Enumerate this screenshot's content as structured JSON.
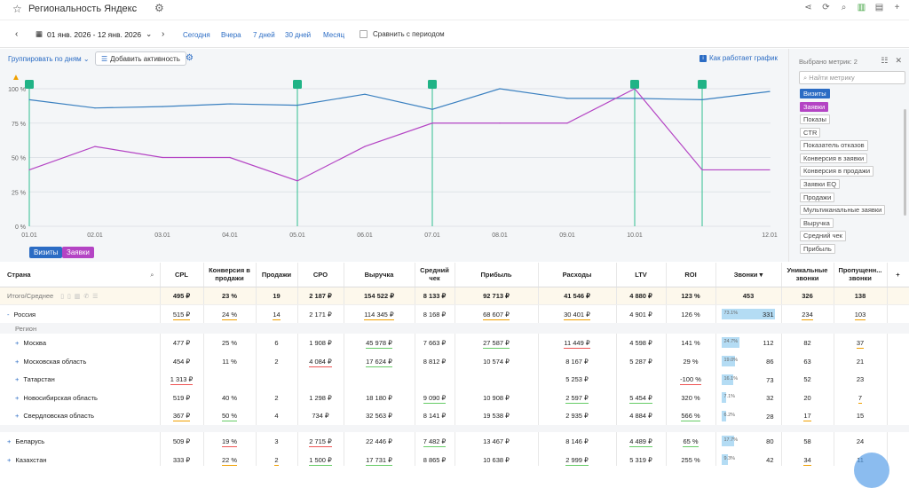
{
  "header": {
    "title": "Региональность Яндекс",
    "icons": [
      "share-icon",
      "refresh-icon",
      "search-icon",
      "chart-icon",
      "excel-icon",
      "plus-icon"
    ]
  },
  "toolbar": {
    "date_range": "01 янв. 2026 - 12 янв. 2026",
    "periods": [
      "Сегодня",
      "Вчера",
      "7 дней",
      "30 дней",
      "Месяц"
    ],
    "compare_label": "Сравнить с периодом"
  },
  "chart_controls": {
    "group_by": "Группировать по дням",
    "add_activity": "Добавить активность",
    "how_works": "Как работает график"
  },
  "chart_data": {
    "type": "line",
    "x": [
      "01.01",
      "02.01",
      "03.01",
      "04.01",
      "05.01",
      "06.01",
      "07.01",
      "08.01",
      "09.01",
      "10.01",
      "11.01",
      "12.01"
    ],
    "x_ticks": [
      "01.01",
      "02.01",
      "03.01",
      "04.01",
      "05.01",
      "06.01",
      "07.01",
      "08.01",
      "09.01",
      "10.01",
      "12.01"
    ],
    "y_ticks": [
      "0 %",
      "25 %",
      "50 %",
      "75 %",
      "100 %"
    ],
    "ylim": [
      0,
      100
    ],
    "grid": true,
    "series": [
      {
        "name": "Визиты",
        "color": "#3a80c0",
        "values": [
          92,
          86,
          87,
          89,
          88,
          96,
          85,
          100,
          93,
          93,
          92,
          98
        ]
      },
      {
        "name": "Заявки",
        "color": "#b444c4",
        "values": [
          41,
          58,
          50,
          50,
          33,
          58,
          75,
          75,
          75,
          100,
          41,
          41
        ]
      }
    ],
    "activity_markers": [
      "01.01",
      "05.01",
      "07.01",
      "10.01",
      "11.01"
    ]
  },
  "sidebar": {
    "header": "Выбрано метрик: 2",
    "search_placeholder": "Найти метрику",
    "metrics": [
      {
        "label": "Визиты",
        "state": "sel1"
      },
      {
        "label": "Заявки",
        "state": "sel2"
      },
      {
        "label": "Показы",
        "state": ""
      },
      {
        "label": "CTR",
        "state": ""
      },
      {
        "label": "Показатель отказов",
        "state": ""
      },
      {
        "label": "Конверсия в заявки",
        "state": ""
      },
      {
        "label": "Конверсия в продажи",
        "state": ""
      },
      {
        "label": "Заявки EQ",
        "state": ""
      },
      {
        "label": "Продажи",
        "state": ""
      },
      {
        "label": "Мультиканальные заявки",
        "state": ""
      },
      {
        "label": "Выручка",
        "state": ""
      },
      {
        "label": "Средний чек",
        "state": ""
      },
      {
        "label": "Прибыль",
        "state": ""
      }
    ]
  },
  "table": {
    "columns": [
      "Страна",
      "CPL",
      "Конверсия в продажи",
      "Продажи",
      "CPO",
      "Выручка",
      "Средний чек",
      "Прибыль",
      "Расходы",
      "LTV",
      "ROI",
      "Звонки",
      "Уникальные звонки",
      "Пропущенн... звонки"
    ],
    "total": {
      "name": "Итого/Среднее",
      "cells": [
        "495 ₽",
        "23 %",
        "19",
        "2 187 ₽",
        "154 522 ₽",
        "8 133 ₽",
        "92 713 ₽",
        "41 546 ₽",
        "4 880 ₽",
        "123 %",
        "453",
        "326",
        "138"
      ]
    },
    "russia": {
      "name": "Россия",
      "cells": [
        "515 ₽",
        "24 %",
        "14",
        "2 171 ₽",
        "114 345 ₽",
        "8 168 ₽",
        "68 607 ₽",
        "30 401 ₽",
        "4 901 ₽",
        "126 %",
        "331",
        "234",
        "103"
      ],
      "zv_pct": "73.1%"
    },
    "region_label": "Регион",
    "regions": [
      {
        "name": "Москва",
        "cells": [
          "477 ₽",
          "25 %",
          "6",
          "1 908 ₽",
          "45 978 ₽",
          "7 663 ₽",
          "27 587 ₽",
          "11 449 ₽",
          "4 598 ₽",
          "141 %",
          "112",
          "82",
          "37"
        ],
        "zv_pct": "24.7%"
      },
      {
        "name": "Московская область",
        "cells": [
          "454 ₽",
          "11 %",
          "2",
          "4 084 ₽",
          "17 624 ₽",
          "8 812 ₽",
          "10 574 ₽",
          "8 167 ₽",
          "5 287 ₽",
          "29 %",
          "86",
          "63",
          "21"
        ],
        "zv_pct": "19.0%"
      },
      {
        "name": "Татарстан",
        "cells": [
          "1 313 ₽",
          "",
          "",
          "",
          "",
          "",
          "",
          "5 253 ₽",
          "",
          "-100 %",
          "73",
          "52",
          "23"
        ],
        "zv_pct": "16.1%"
      },
      {
        "name": "Новосибирская область",
        "cells": [
          "519 ₽",
          "40 %",
          "2",
          "1 298 ₽",
          "18 180 ₽",
          "9 090 ₽",
          "10 908 ₽",
          "2 597 ₽",
          "5 454 ₽",
          "320 %",
          "32",
          "20",
          "7"
        ],
        "zv_pct": "7.1%"
      },
      {
        "name": "Свердловская область",
        "cells": [
          "367 ₽",
          "50 %",
          "4",
          "734 ₽",
          "32 563 ₽",
          "8 141 ₽",
          "19 538 ₽",
          "2 935 ₽",
          "4 884 ₽",
          "566 %",
          "28",
          "17",
          "15"
        ],
        "zv_pct": "6.2%"
      }
    ],
    "countries": [
      {
        "name": "Беларусь",
        "cells": [
          "509 ₽",
          "19 %",
          "3",
          "2 715 ₽",
          "22 446 ₽",
          "7 482 ₽",
          "13 467 ₽",
          "8 146 ₽",
          "4 489 ₽",
          "65 %",
          "80",
          "58",
          "24"
        ],
        "zv_pct": "17.7%"
      },
      {
        "name": "Казахстан",
        "cells": [
          "333 ₽",
          "22 %",
          "2",
          "1 500 ₽",
          "17 731 ₽",
          "8 865 ₽",
          "10 638 ₽",
          "2 999 ₽",
          "5 319 ₽",
          "255 %",
          "42",
          "34",
          "11"
        ],
        "zv_pct": "9.3%"
      }
    ]
  }
}
